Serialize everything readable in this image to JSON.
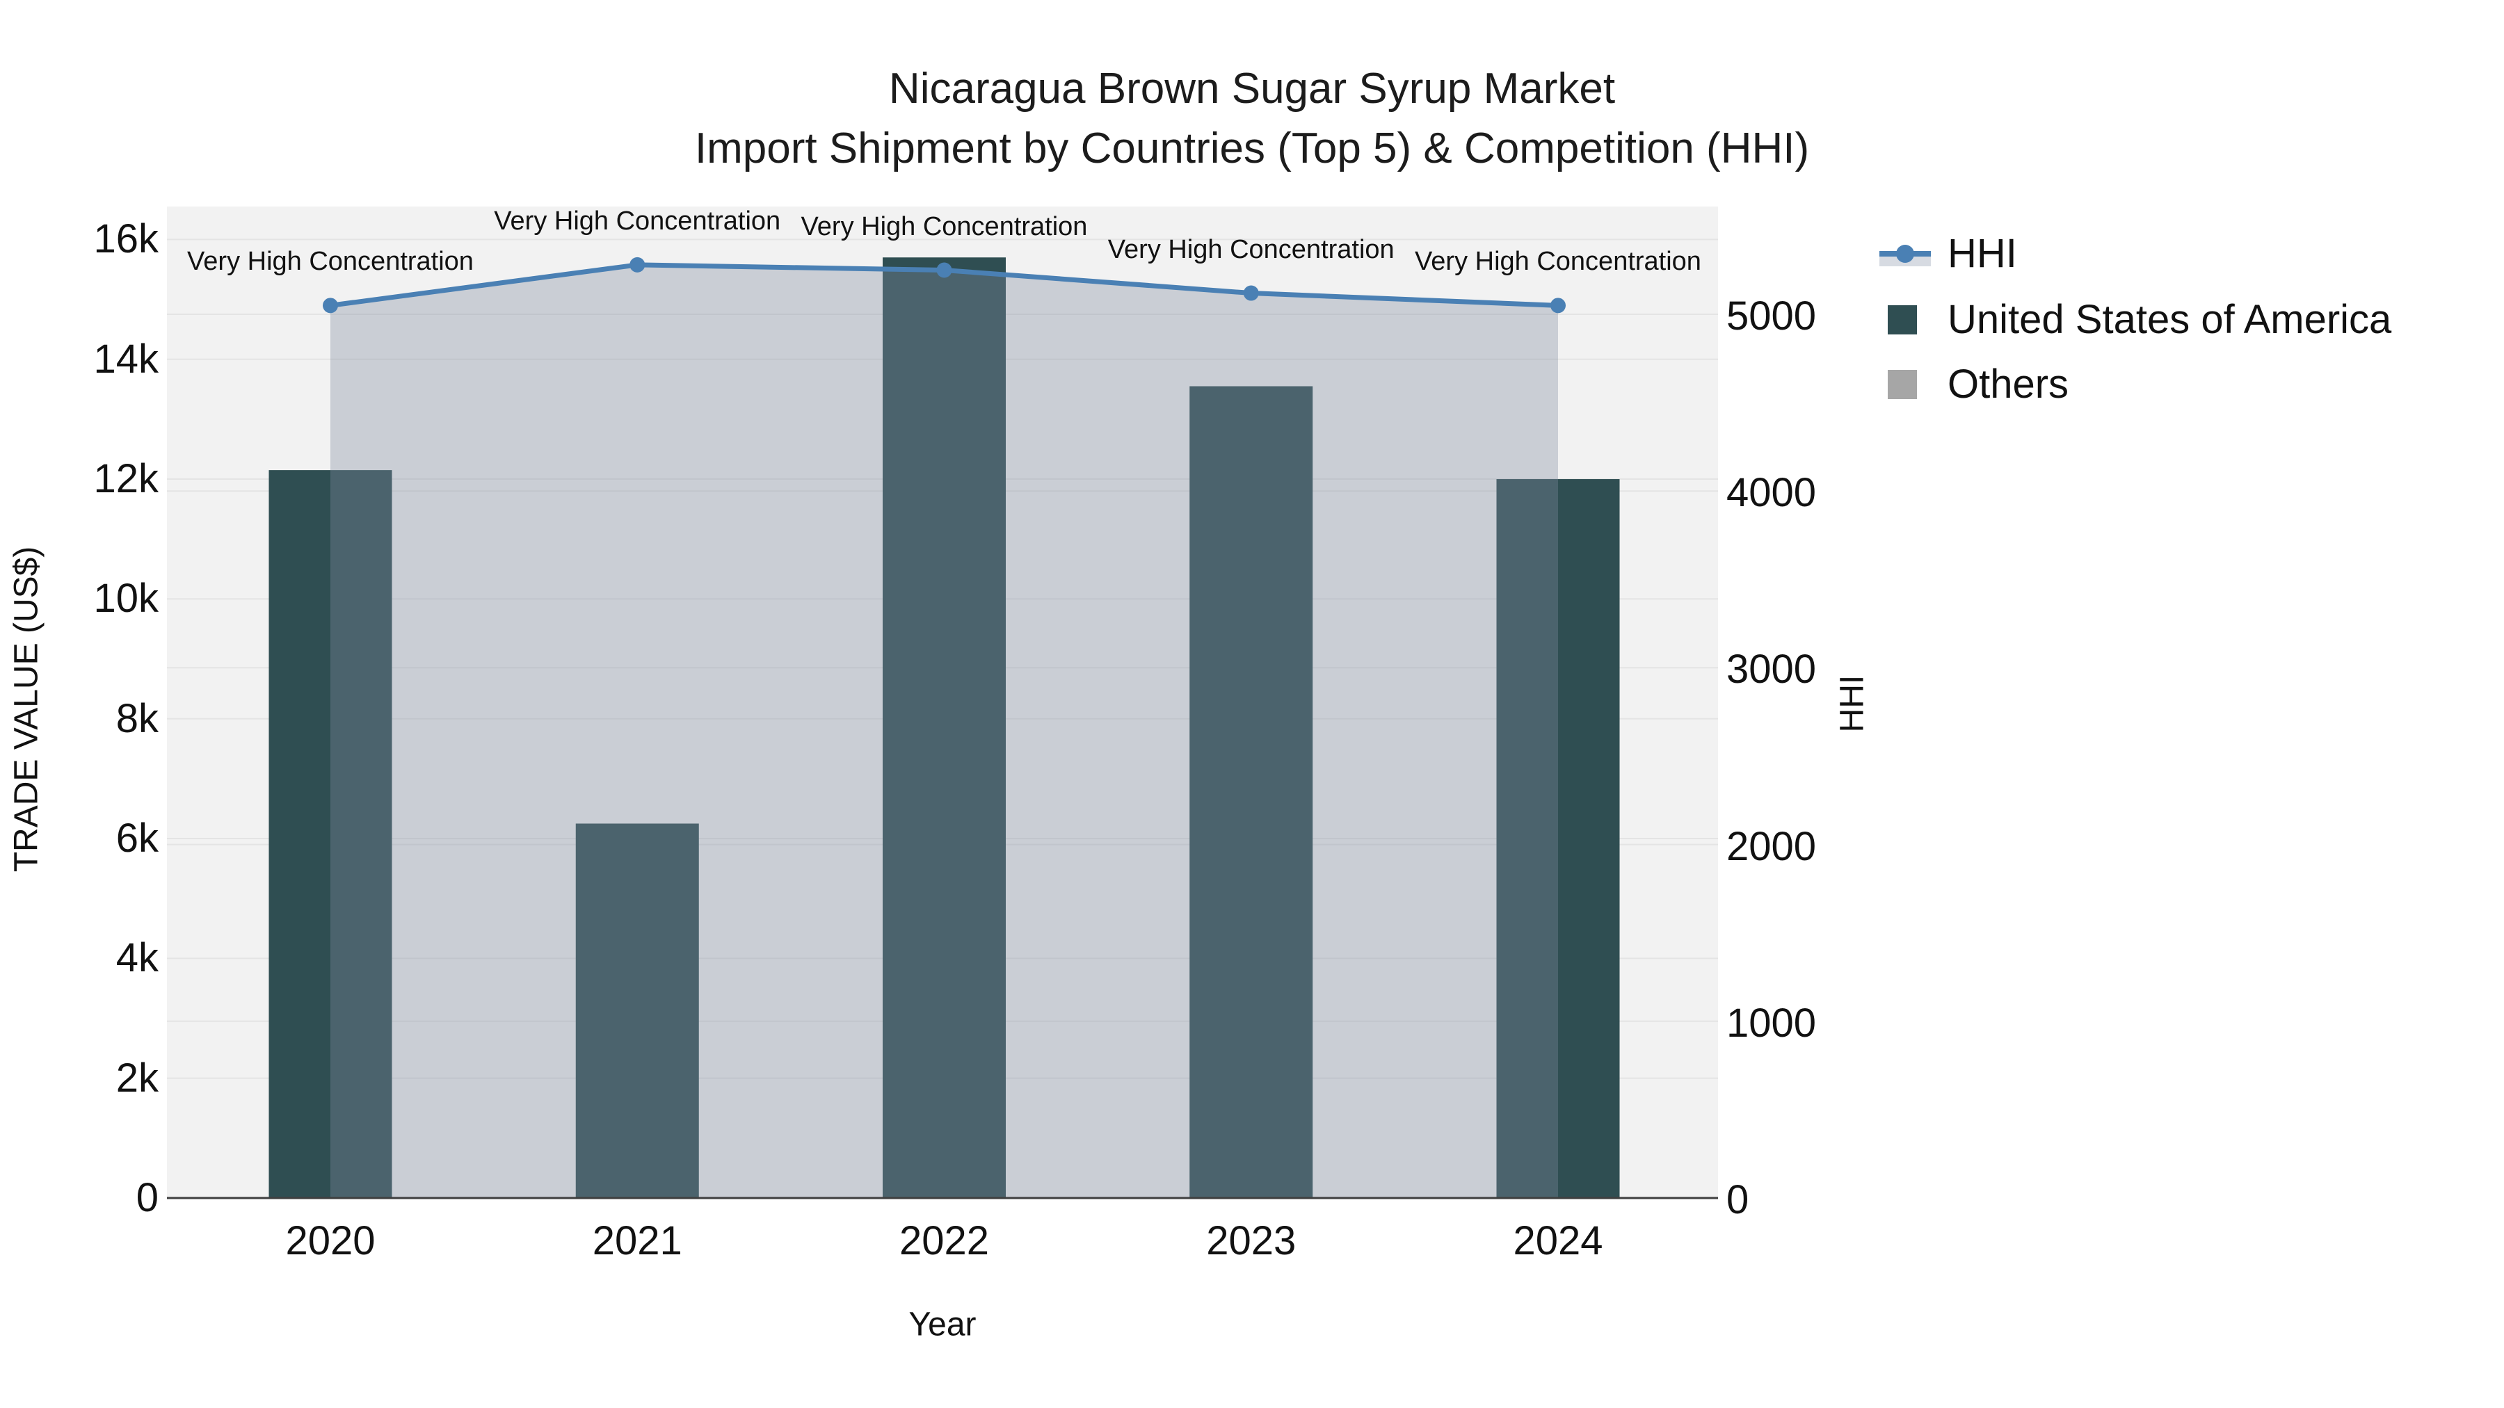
{
  "title": {
    "line1": "Nicaragua Brown Sugar Syrup Market",
    "line2": "Import Shipment by Countries (Top 5) & Competition (HHI)"
  },
  "legend": {
    "items": [
      {
        "label": "HHI",
        "type": "line-fill"
      },
      {
        "label": "United States of America",
        "type": "bar"
      },
      {
        "label": "Others",
        "type": "bar"
      }
    ]
  },
  "chart_data": {
    "type": "combo-bar-line",
    "categories": [
      "2020",
      "2021",
      "2022",
      "2023",
      "2024"
    ],
    "series": [
      {
        "name": "United States of America",
        "type": "bar",
        "y_axis": "left",
        "values": [
          12150,
          6250,
          15700,
          13550,
          12000
        ]
      },
      {
        "name": "Others",
        "type": "bar",
        "y_axis": "left",
        "values": [
          0,
          0,
          0,
          0,
          0
        ]
      },
      {
        "name": "HHI",
        "type": "line",
        "y_axis": "right",
        "fill": "tozeroy",
        "values": [
          5050,
          5280,
          5250,
          5120,
          5050
        ]
      }
    ],
    "annotations": [
      "Very High Concentration",
      "Very High Concentration",
      "Very High Concentration",
      "Very High Concentration",
      "Very High Concentration"
    ],
    "x": {
      "title": "Year"
    },
    "y_left": {
      "title": "TRADE VALUE (US$)",
      "range": [
        0,
        16550
      ],
      "tick_values": [
        0,
        2000,
        4000,
        6000,
        8000,
        10000,
        12000,
        14000,
        16000
      ],
      "tick_labels": [
        "0",
        "2k",
        "4k",
        "6k",
        "8k",
        "10k",
        "12k",
        "14k",
        "16k"
      ]
    },
    "y_right": {
      "title": "HHI",
      "range": [
        0,
        5610
      ],
      "tick_values": [
        0,
        1000,
        2000,
        3000,
        4000,
        5000
      ],
      "tick_labels": [
        "0",
        "1000",
        "2000",
        "3000",
        "4000",
        "5000"
      ]
    },
    "grid": true,
    "legend_position": "right"
  },
  "colors": {
    "bar": "#2f4e52",
    "others": "#a6a6a6",
    "line": "#4a80b4",
    "fill": "rgba(128,140,160,0.35)",
    "legend_fill_sample": "#d7dbe2",
    "plot_bg": "#f2f2f2",
    "grid": "#e4e4e4",
    "axis_line": "#3f3f3f",
    "text": "#111111"
  }
}
